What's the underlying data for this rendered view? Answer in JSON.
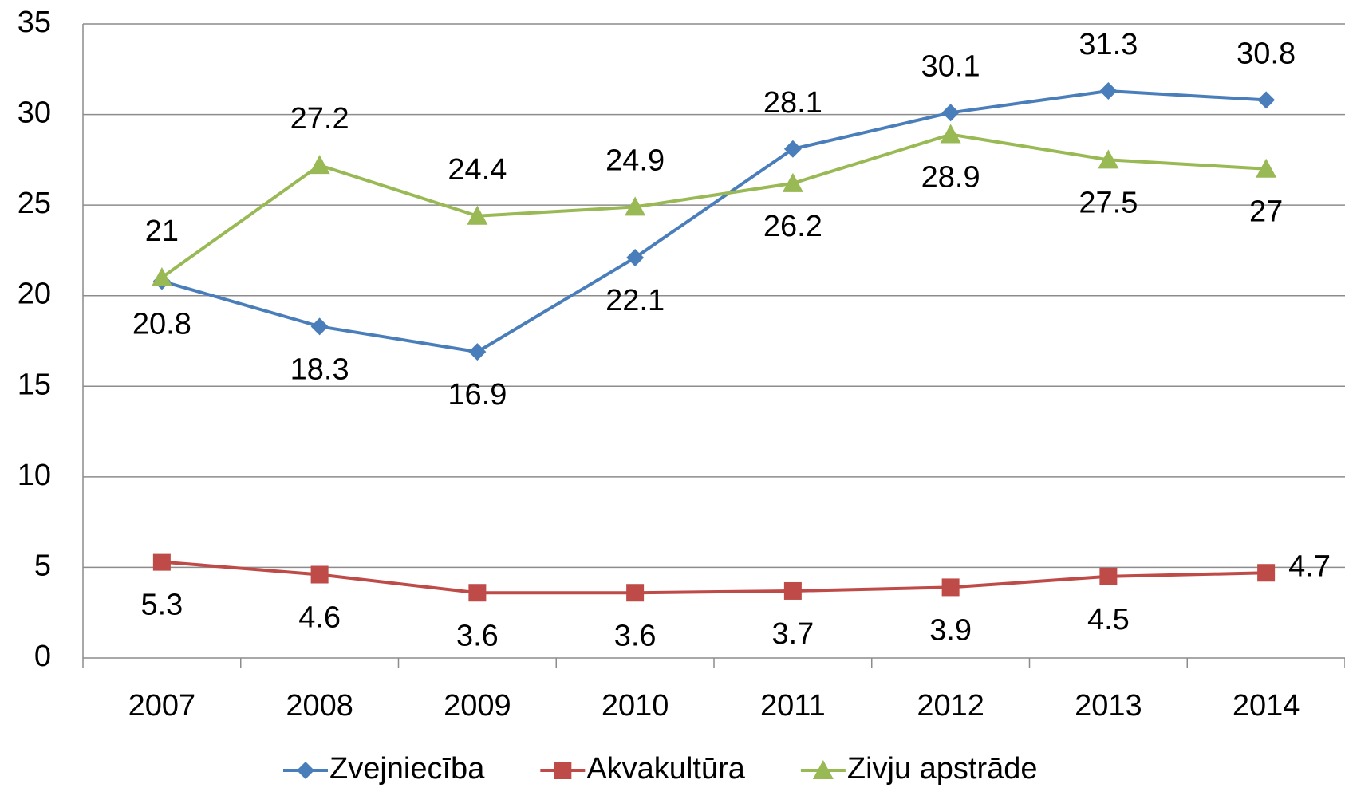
{
  "chart_data": {
    "type": "line",
    "categories": [
      "2007",
      "2008",
      "2009",
      "2010",
      "2011",
      "2012",
      "2013",
      "2014"
    ],
    "series": [
      {
        "name": "Zvejniecība",
        "color": "#4a7ebb",
        "marker": "diamond",
        "values": [
          20.8,
          18.3,
          16.9,
          22.1,
          28.1,
          30.1,
          31.3,
          30.8
        ]
      },
      {
        "name": "Akvakultūra",
        "color": "#be4b48",
        "marker": "square",
        "values": [
          5.3,
          4.6,
          3.6,
          3.6,
          3.7,
          3.9,
          4.5,
          4.7
        ]
      },
      {
        "name": "Zivju apstrāde",
        "color": "#98b954",
        "marker": "triangle",
        "values": [
          21,
          27.2,
          24.4,
          24.9,
          26.2,
          28.9,
          27.5,
          27
        ]
      }
    ],
    "ylim": [
      0,
      35
    ],
    "yticks": [
      0,
      5,
      10,
      15,
      20,
      25,
      30,
      35
    ],
    "grid": true,
    "legend": "bottom"
  }
}
